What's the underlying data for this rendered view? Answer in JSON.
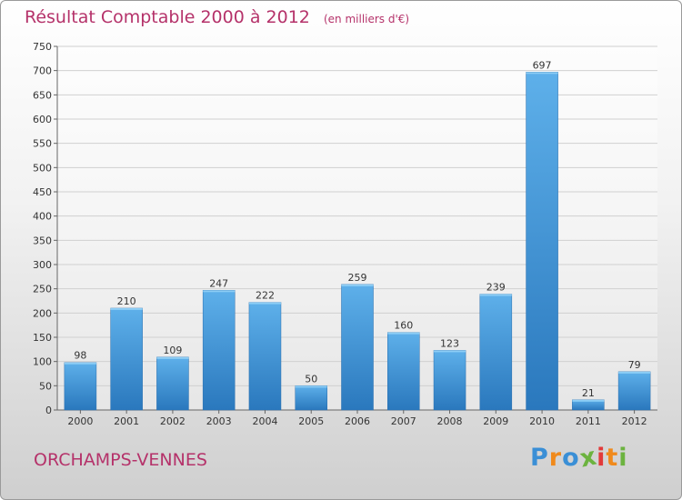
{
  "title": "Résultat Comptable 2000 à 2012",
  "subtitle": "(en milliers d'€)",
  "commune": "ORCHAMPS-VENNES",
  "logo": {
    "letters": [
      "P",
      "r",
      "o",
      "x",
      "i",
      "t",
      "i"
    ],
    "colors": [
      "#3a8fd6",
      "#f08a1c",
      "#3a8fd6",
      "#6cb33f",
      "#e23a3a",
      "#f08a1c",
      "#6cb33f"
    ]
  },
  "colors": {
    "title": "#b5326a",
    "bar_top": "#5eb0ea",
    "bar_bottom": "#2a78bd",
    "axis": "#666666",
    "grid": "#d0d0d0"
  },
  "chart_data": {
    "type": "bar",
    "title": "Résultat Comptable 2000 à 2012",
    "ylabel": "(en milliers d'€)",
    "xlabel": "",
    "categories": [
      "2000",
      "2001",
      "2002",
      "2003",
      "2004",
      "2005",
      "2006",
      "2007",
      "2008",
      "2009",
      "2010",
      "2011",
      "2012"
    ],
    "values": [
      98,
      210,
      109,
      247,
      222,
      50,
      259,
      160,
      123,
      239,
      697,
      21,
      79
    ],
    "ylim": [
      0,
      750
    ],
    "ytick_step": 50,
    "grid": true
  }
}
